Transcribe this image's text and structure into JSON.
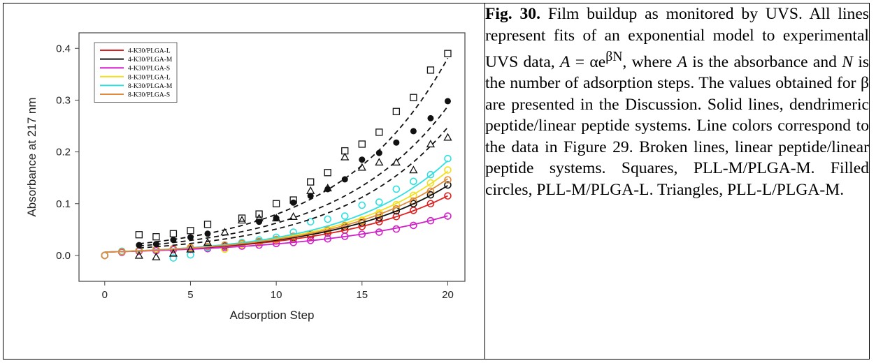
{
  "caption": {
    "label": "Fig. 30.",
    "p1": "Film buildup as monitored by UVS. All lines represent fits of an exponential model to experimental UVS data,",
    "var_a": "A",
    "eq_mid": "= αe",
    "eq_sup": "βN",
    "p2": ", where",
    "p3": "is the absorbance and",
    "var_n": "N",
    "p4": "is the number of adsorption steps. The values obtained for β are presented in the Discussion. Solid lines, dendrimeric peptide/linear peptide systems. Line colors correspond to the data in Figure 29. Broken lines, linear peptide/linear peptide systems. Squares, PLL-M/PLGA-M. Filled circles, PLL-M/PLGA-L. Triangles, PLL-L/PLGA-M."
  },
  "chart_data": {
    "type": "scatter",
    "xlabel": "Adsorption Step",
    "ylabel": "Absorbance at 217 nm",
    "xlim": [
      -1.5,
      21
    ],
    "ylim": [
      -0.05,
      0.43
    ],
    "xticks": [
      0,
      5,
      10,
      15,
      20
    ],
    "xtick_labels": [
      "0",
      "5",
      "10",
      "15",
      "20"
    ],
    "yticks": [
      0.0,
      0.1,
      0.2,
      0.3,
      0.4
    ],
    "ytick_labels": [
      "0.0",
      "0.1",
      "0.2",
      "0.3",
      "0.4"
    ],
    "grid": false,
    "legend_position": "top-left",
    "colored_series": [
      {
        "name": "4-K30/PLGA-L",
        "color": "#e02020",
        "fit": {
          "alpha": 0.0065,
          "beta": 0.1437
        },
        "x": [
          0,
          1,
          2,
          3,
          4,
          5,
          6,
          7,
          8,
          9,
          10,
          11,
          12,
          13,
          14,
          15,
          16,
          17,
          18,
          19,
          20
        ],
        "y": [
          0.0,
          0.007,
          0.009,
          0.011,
          0.012,
          0.014,
          0.016,
          0.018,
          0.021,
          0.024,
          0.028,
          0.032,
          0.037,
          0.043,
          0.049,
          0.056,
          0.065,
          0.075,
          0.087,
          0.1,
          0.115
        ]
      },
      {
        "name": "4-K30/PLGA-M",
        "color": "#111111",
        "fit": {
          "alpha": 0.0065,
          "beta": 0.1517
        },
        "x": [
          0,
          1,
          2,
          3,
          4,
          5,
          6,
          7,
          8,
          9,
          10,
          11,
          12,
          13,
          14,
          15,
          16,
          17,
          18,
          19,
          20
        ],
        "y": [
          0.0,
          0.007,
          0.009,
          0.01,
          0.012,
          0.014,
          0.016,
          0.019,
          0.022,
          0.025,
          0.03,
          0.035,
          0.04,
          0.047,
          0.055,
          0.063,
          0.073,
          0.086,
          0.1,
          0.117,
          0.136
        ]
      },
      {
        "name": "4-K30/PLGA-S",
        "color": "#d020c8",
        "fit": {
          "alpha": 0.0065,
          "beta": 0.1232
        },
        "x": [
          0,
          1,
          2,
          3,
          4,
          5,
          6,
          7,
          8,
          9,
          10,
          11,
          12,
          13,
          14,
          15,
          16,
          17,
          18,
          19,
          20
        ],
        "y": [
          0.0,
          0.006,
          0.008,
          0.009,
          0.011,
          0.012,
          0.013,
          0.015,
          0.018,
          0.02,
          0.023,
          0.025,
          0.029,
          0.032,
          0.037,
          0.041,
          0.045,
          0.051,
          0.058,
          0.067,
          0.076
        ]
      },
      {
        "name": "8-K30/PLGA-L",
        "color": "#f2e020",
        "fit": {
          "alpha": 0.0065,
          "beta": 0.161
        },
        "x": [
          0,
          1,
          2,
          3,
          4,
          5,
          6,
          7,
          8,
          9,
          10,
          11,
          12,
          13,
          14,
          15,
          16,
          17,
          18,
          19,
          20
        ],
        "y": [
          0.0,
          0.008,
          0.01,
          0.012,
          0.013,
          0.014,
          0.016,
          0.012,
          0.021,
          0.024,
          0.03,
          0.036,
          0.042,
          0.05,
          0.058,
          0.068,
          0.082,
          0.098,
          0.116,
          0.14,
          0.165
        ]
      },
      {
        "name": "8-K30/PLGA-M",
        "color": "#30e0e0",
        "fit": {
          "alpha": 0.0065,
          "beta": 0.1669
        },
        "x": [
          0,
          1,
          2,
          3,
          4,
          5,
          6,
          7,
          8,
          9,
          10,
          11,
          12,
          13,
          14,
          15,
          16,
          17,
          18,
          19,
          20
        ],
        "y": [
          0.0,
          0.008,
          0.01,
          0.011,
          -0.005,
          0.001,
          0.015,
          0.02,
          0.025,
          0.03,
          0.035,
          0.045,
          0.065,
          0.07,
          0.076,
          0.097,
          0.103,
          0.128,
          0.143,
          0.156,
          0.187
        ]
      },
      {
        "name": "8-K30/PLGA-S",
        "color": "#e08a3a",
        "fit": {
          "alpha": 0.0065,
          "beta": 0.1563
        },
        "x": [
          0,
          1,
          2,
          3,
          4,
          5,
          6,
          7,
          8,
          9,
          10,
          11,
          12,
          13,
          14,
          15,
          16,
          17,
          18,
          19,
          20
        ],
        "y": [
          0.0,
          0.007,
          0.009,
          0.011,
          0.013,
          0.015,
          0.017,
          0.02,
          0.023,
          0.027,
          0.031,
          0.037,
          0.042,
          0.049,
          0.058,
          0.066,
          0.078,
          0.09,
          0.105,
          0.124,
          0.146
        ]
      }
    ],
    "black_series": [
      {
        "marker": "open-square",
        "fit": {
          "alpha": 0.0165,
          "beta": 0.157
        },
        "x": [
          2,
          3,
          4,
          5,
          6,
          8,
          9,
          10,
          11,
          12,
          13,
          14,
          15,
          16,
          17,
          18,
          19,
          20
        ],
        "y": [
          0.04,
          0.036,
          0.042,
          0.048,
          0.06,
          0.072,
          0.08,
          0.1,
          0.107,
          0.142,
          0.16,
          0.202,
          0.215,
          0.238,
          0.278,
          0.305,
          0.358,
          0.39
        ]
      },
      {
        "marker": "filled-circle",
        "fit": {
          "alpha": 0.0135,
          "beta": 0.153
        },
        "x": [
          2,
          3,
          4,
          5,
          6,
          9,
          10,
          11,
          12,
          13,
          14,
          15,
          16,
          17,
          18,
          19,
          20
        ],
        "y": [
          0.02,
          0.022,
          0.03,
          0.035,
          0.042,
          0.065,
          0.072,
          0.102,
          0.115,
          0.128,
          0.147,
          0.185,
          0.198,
          0.218,
          0.24,
          0.265,
          0.298
        ]
      },
      {
        "marker": "open-triangle",
        "fit": {
          "alpha": 0.0105,
          "beta": 0.158
        },
        "x": [
          2,
          3,
          4,
          5,
          6,
          7,
          8,
          9,
          10,
          11,
          12,
          13,
          14,
          15,
          16,
          17,
          18,
          19,
          20
        ],
        "y": [
          0.0,
          -0.003,
          0.004,
          0.012,
          0.025,
          0.045,
          0.068,
          0.072,
          0.072,
          0.075,
          0.125,
          0.13,
          0.19,
          0.17,
          0.18,
          0.18,
          0.165,
          0.215,
          0.228
        ]
      }
    ]
  }
}
